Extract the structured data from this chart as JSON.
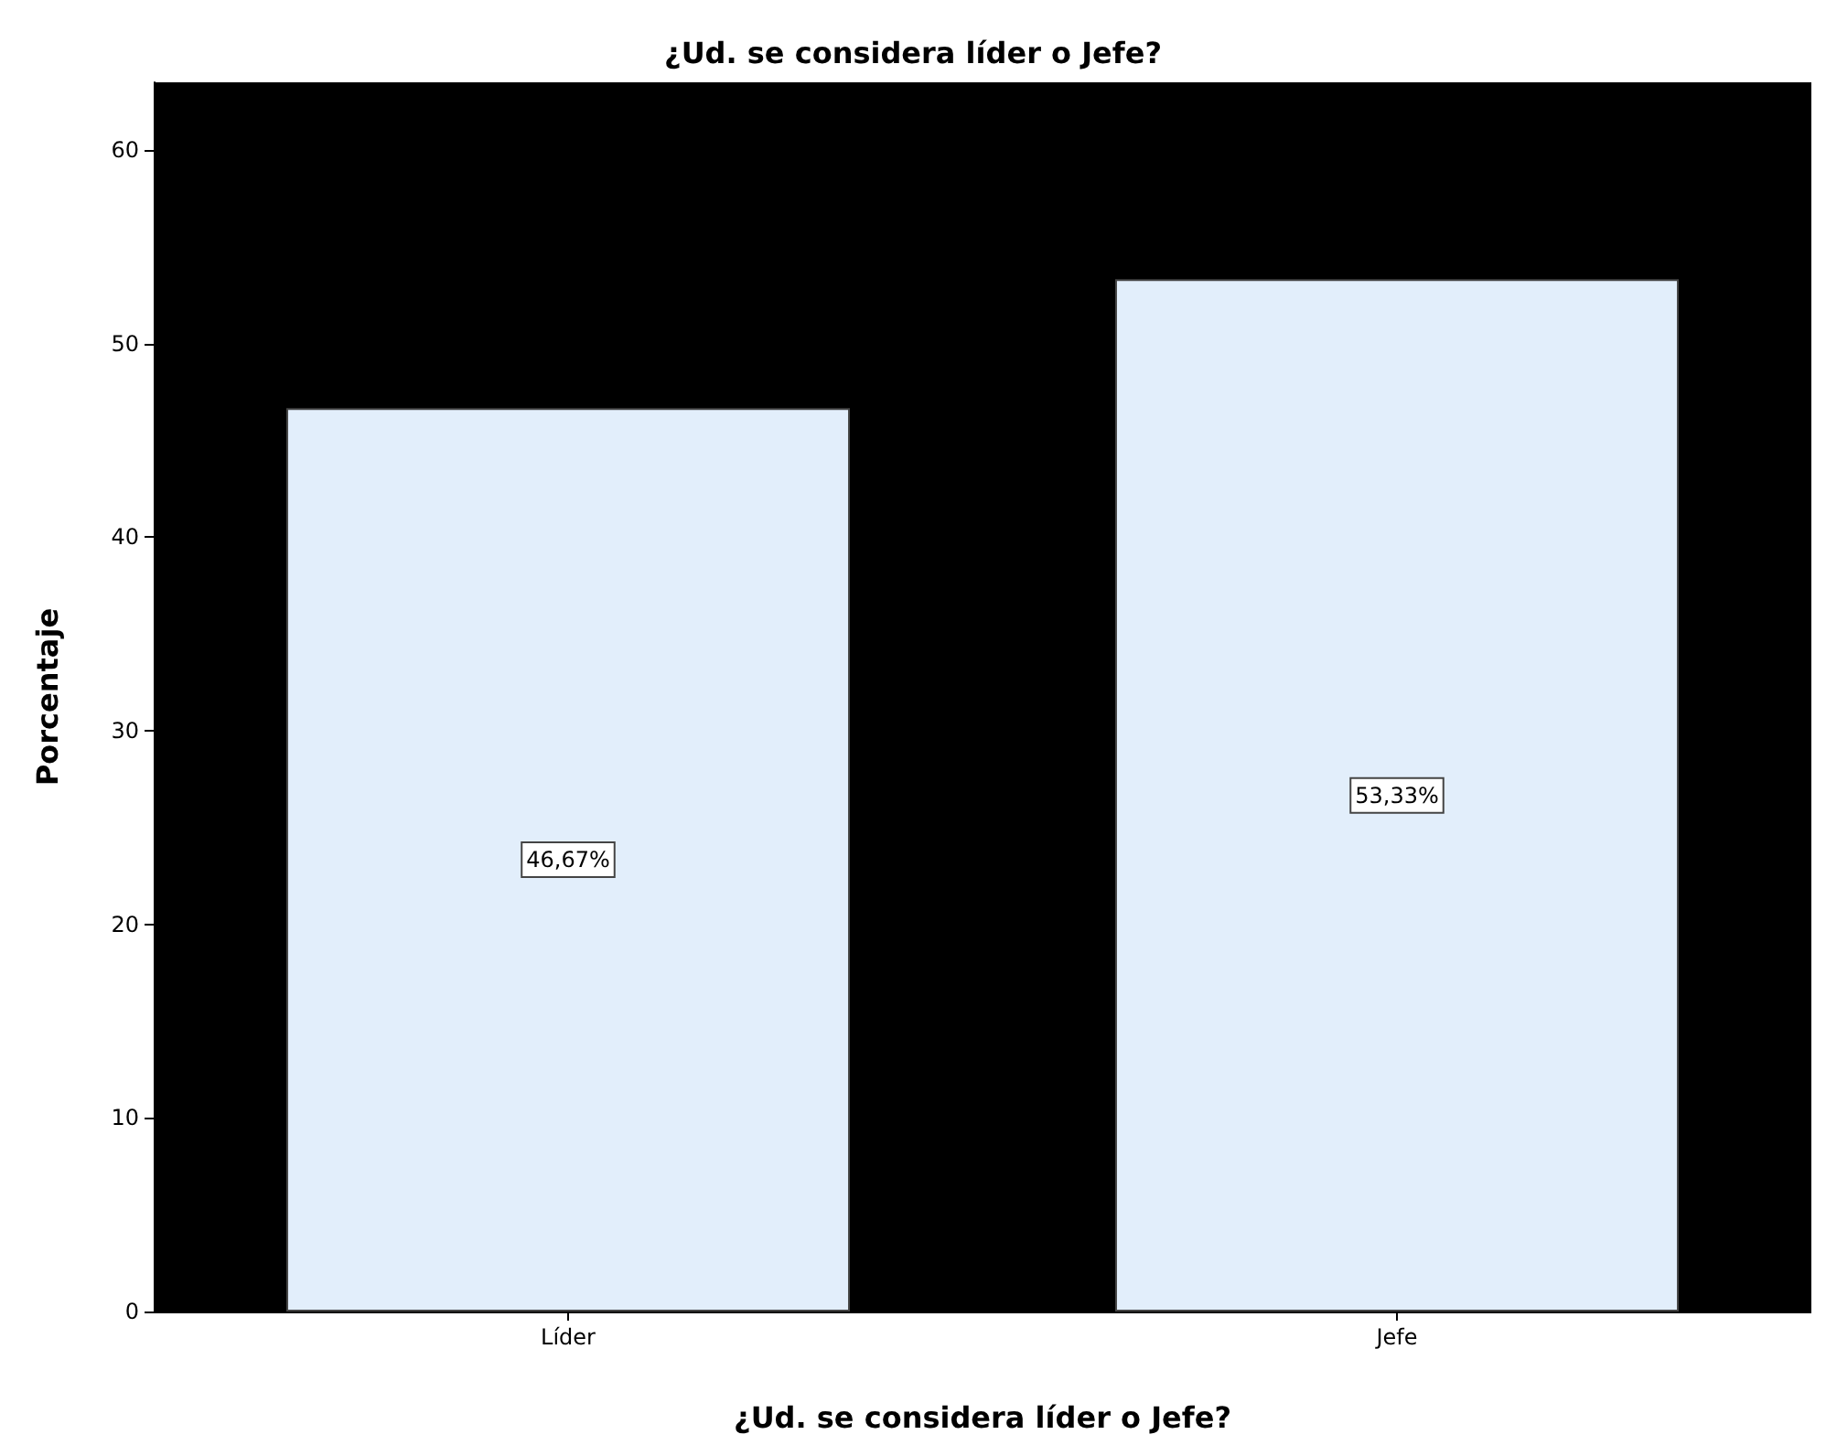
{
  "chart_data": {
    "type": "bar",
    "title": "¿Ud. se considera líder o Jefe?",
    "xlabel": "¿Ud. se considera líder o Jefe?",
    "ylabel": "Porcentaje",
    "categories": [
      "Líder",
      "Jefe"
    ],
    "values": [
      46.67,
      53.33
    ],
    "value_labels": [
      "46,67%",
      "53,33%"
    ],
    "color": "#e2eefb",
    "ylim": [
      0,
      63.5
    ],
    "yticks": [
      0,
      10,
      20,
      30,
      40,
      50,
      60
    ],
    "grid": false
  }
}
